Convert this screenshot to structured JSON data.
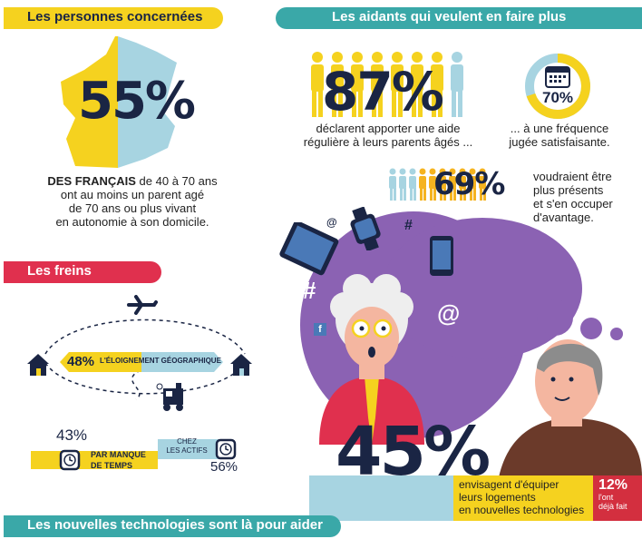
{
  "section_concerned": {
    "header": "Les personnes concernées",
    "percent": "55%",
    "text_bold": "DES FRANÇAIS",
    "text_1": " de 40 à 70 ans",
    "text_2": "ont au moins un parent agé",
    "text_3": "de 70 ans ou plus vivant",
    "text_4": "en autonomie à son domicile."
  },
  "section_helpers": {
    "header": "Les aidants qui veulent en faire plus",
    "stat1_percent": "87%",
    "stat1_text_1": "déclarent apporter une aide",
    "stat1_text_2": "régulière à leurs parents âgés ...",
    "stat2_percent": "70%",
    "stat2_text_1": "... à une fréquence",
    "stat2_text_2": "jugée satisfaisante.",
    "stat3_percent": "69%",
    "stat3_text_1": "voudraient être",
    "stat3_text_2": "plus présents",
    "stat3_text_3": "et s'en occuper",
    "stat3_text_4": "d'avantage."
  },
  "section_brakes": {
    "header": "Les freins",
    "distance_percent": "48%",
    "distance_label": "L'ÉLOIGNEMENT GÉOGRAPHIQUE",
    "time_percent": "43%",
    "time_label_1": "PAR MANQUE",
    "time_label_2": "DE TEMPS",
    "active_label_1": "CHEZ",
    "active_label_2": "LES ACTIFS",
    "active_percent": "56%"
  },
  "section_tech": {
    "percent": "45%",
    "text_1": "envisagent d'équiper",
    "text_2": "leurs logements",
    "text_3": "en nouvelles technologies",
    "already_percent": "12%",
    "already_text_1": "l'ont",
    "already_text_2": "déjà fait",
    "footer": "Les nouvelles technologies sont là pour aider"
  },
  "colors": {
    "yellow": "#f5d21f",
    "teal": "#3aa8a8",
    "red": "#e0304e",
    "purple": "#8b62b3",
    "navy": "#1a2544",
    "light_blue": "#a7d4e1",
    "dark_red": "#d32f3f"
  },
  "icons": [
    "france-map-icon",
    "calendar-icon",
    "tablet-icon",
    "smartwatch-icon",
    "smartphone-icon",
    "at-icon",
    "hashtag-icon",
    "facebook-icon",
    "airplane-icon",
    "house-icon",
    "train-icon",
    "wristwatch-icon"
  ]
}
